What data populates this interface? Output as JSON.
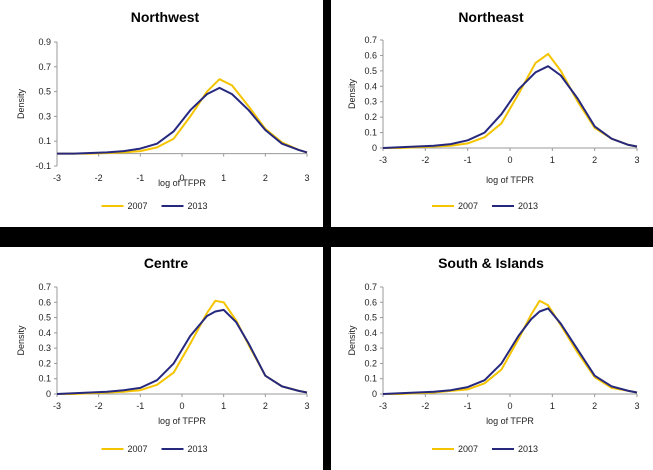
{
  "colors": {
    "s2007": "#f5c400",
    "s2013": "#26287e",
    "axis": "#999999"
  },
  "chart_data": [
    {
      "type": "line",
      "title": "Northwest",
      "xlabel": "log of TFPR",
      "ylabel": "Density",
      "xlim": [
        -3,
        3
      ],
      "ylim": [
        -0.1,
        0.9
      ],
      "xticks": [
        "-3",
        "-2",
        "-1",
        "0",
        "1",
        "2",
        "3"
      ],
      "yticks": [
        "-0.1",
        "0.1",
        "0.3",
        "0.5",
        "0.7",
        "0.9"
      ],
      "x": [
        -3,
        -2.6,
        -2.2,
        -1.8,
        -1.4,
        -1.0,
        -0.6,
        -0.2,
        0.2,
        0.6,
        0.9,
        1.2,
        1.6,
        2.0,
        2.4,
        2.8,
        3.0
      ],
      "series": [
        {
          "name": "2007",
          "values": [
            0.0,
            0.0,
            0.0,
            0.005,
            0.01,
            0.02,
            0.05,
            0.12,
            0.3,
            0.5,
            0.6,
            0.55,
            0.38,
            0.2,
            0.09,
            0.03,
            0.01
          ]
        },
        {
          "name": "2013",
          "values": [
            0.0,
            0.0,
            0.005,
            0.01,
            0.02,
            0.04,
            0.08,
            0.18,
            0.35,
            0.48,
            0.53,
            0.48,
            0.35,
            0.19,
            0.08,
            0.03,
            0.01
          ]
        }
      ]
    },
    {
      "type": "line",
      "title": "Northeast",
      "xlabel": "log of TFPR",
      "ylabel": "Density",
      "xlim": [
        -3,
        3
      ],
      "ylim": [
        0,
        0.7
      ],
      "xticks": [
        "-3",
        "-2",
        "-1",
        "0",
        "1",
        "2",
        "3"
      ],
      "yticks": [
        "0",
        "0.1",
        "0.2",
        "0.3",
        "0.4",
        "0.5",
        "0.6",
        "0.7"
      ],
      "x": [
        -3,
        -2.6,
        -2.2,
        -1.8,
        -1.4,
        -1.0,
        -0.6,
        -0.2,
        0.2,
        0.6,
        0.9,
        1.2,
        1.6,
        2.0,
        2.4,
        2.8,
        3.0
      ],
      "series": [
        {
          "name": "2007",
          "values": [
            0.0,
            0.0,
            0.005,
            0.01,
            0.015,
            0.03,
            0.07,
            0.16,
            0.35,
            0.55,
            0.61,
            0.5,
            0.3,
            0.13,
            0.06,
            0.02,
            0.01
          ]
        },
        {
          "name": "2013",
          "values": [
            0.0,
            0.005,
            0.01,
            0.015,
            0.025,
            0.05,
            0.1,
            0.22,
            0.38,
            0.49,
            0.53,
            0.47,
            0.32,
            0.14,
            0.06,
            0.02,
            0.01
          ]
        }
      ]
    },
    {
      "type": "line",
      "title": "Centre",
      "xlabel": "log of TFPR",
      "ylabel": "Density",
      "xlim": [
        -3,
        3
      ],
      "ylim": [
        0,
        0.7
      ],
      "xticks": [
        "-3",
        "-2",
        "-1",
        "0",
        "1",
        "2",
        "3"
      ],
      "yticks": [
        "0",
        "0.1",
        "0.2",
        "0.3",
        "0.4",
        "0.5",
        "0.6",
        "0.7"
      ],
      "x": [
        -3,
        -2.6,
        -2.2,
        -1.8,
        -1.4,
        -1.0,
        -0.6,
        -0.2,
        0.2,
        0.6,
        0.8,
        1.0,
        1.3,
        1.6,
        2.0,
        2.4,
        2.8,
        3.0
      ],
      "series": [
        {
          "name": "2007",
          "values": [
            0.0,
            0.0,
            0.005,
            0.01,
            0.015,
            0.025,
            0.06,
            0.14,
            0.33,
            0.53,
            0.61,
            0.6,
            0.48,
            0.32,
            0.12,
            0.05,
            0.02,
            0.01
          ]
        },
        {
          "name": "2013",
          "values": [
            0.0,
            0.005,
            0.01,
            0.015,
            0.025,
            0.04,
            0.09,
            0.2,
            0.38,
            0.51,
            0.54,
            0.55,
            0.47,
            0.33,
            0.12,
            0.05,
            0.02,
            0.01
          ]
        }
      ]
    },
    {
      "type": "line",
      "title": "South & Islands",
      "xlabel": "log of TFPR",
      "ylabel": "Density",
      "xlim": [
        -3,
        3
      ],
      "ylim": [
        0,
        0.7
      ],
      "xticks": [
        "-3",
        "-2",
        "-1",
        "0",
        "1",
        "2",
        "3"
      ],
      "yticks": [
        "0",
        "0.1",
        "0.2",
        "0.3",
        "0.4",
        "0.5",
        "0.6",
        "0.7"
      ],
      "x": [
        -3,
        -2.6,
        -2.2,
        -1.8,
        -1.4,
        -1.0,
        -0.6,
        -0.2,
        0.2,
        0.5,
        0.7,
        0.9,
        1.2,
        1.6,
        2.0,
        2.4,
        2.8,
        3.0
      ],
      "series": [
        {
          "name": "2007",
          "values": [
            0.0,
            0.0,
            0.005,
            0.01,
            0.02,
            0.03,
            0.07,
            0.16,
            0.36,
            0.52,
            0.61,
            0.58,
            0.45,
            0.27,
            0.11,
            0.04,
            0.02,
            0.01
          ]
        },
        {
          "name": "2013",
          "values": [
            0.0,
            0.005,
            0.01,
            0.015,
            0.025,
            0.045,
            0.09,
            0.2,
            0.38,
            0.49,
            0.54,
            0.56,
            0.46,
            0.29,
            0.12,
            0.05,
            0.02,
            0.01
          ]
        }
      ]
    }
  ]
}
